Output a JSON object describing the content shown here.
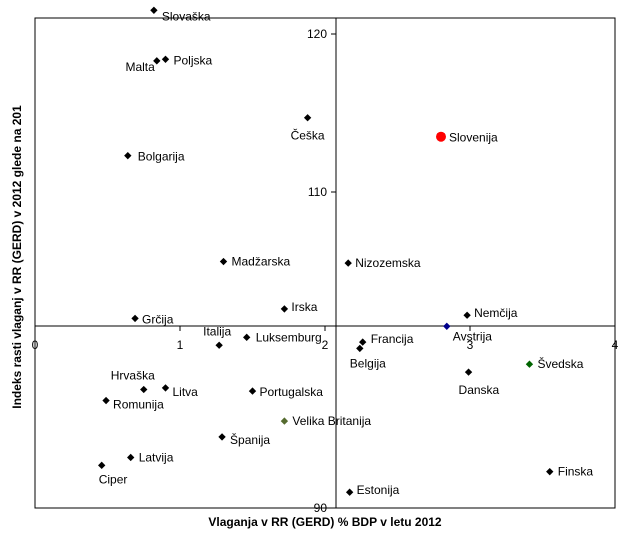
{
  "chart_data": {
    "type": "scatter",
    "title": "",
    "xlabel": "Vlaganja v RR (GERD) % BDP v letu 2012",
    "ylabel": "Indeks rasti vlaganj v RR (GERD) v 2012 glede na 201",
    "xlim": [
      0,
      4
    ],
    "ylim": [
      90,
      122
    ],
    "x_ticks": [
      0,
      1,
      2,
      3,
      4
    ],
    "y_ticks": [
      90,
      110,
      120
    ],
    "grid": false,
    "legend": "none",
    "highlight_color": "#ff0000",
    "default_color": "#000000",
    "points": [
      {
        "label": "Slovaška",
        "x": 0.82,
        "y": 121.5
      },
      {
        "label": "Malta",
        "x": 0.84,
        "y": 118.3
      },
      {
        "label": "Poljska",
        "x": 0.9,
        "y": 118.4
      },
      {
        "label": "Češka",
        "x": 1.88,
        "y": 114.7
      },
      {
        "label": "Slovenija",
        "x": 2.8,
        "y": 113.5,
        "color": "#ff0000"
      },
      {
        "label": "Bolgarija",
        "x": 0.64,
        "y": 112.3
      },
      {
        "label": "Madžarska",
        "x": 1.3,
        "y": 105.6
      },
      {
        "label": "Nizozemska",
        "x": 2.16,
        "y": 105.5
      },
      {
        "label": "Irska",
        "x": 1.72,
        "y": 102.6
      },
      {
        "label": "Nemčija",
        "x": 2.98,
        "y": 102.2
      },
      {
        "label": "Grčija",
        "x": 0.69,
        "y": 102.0
      },
      {
        "label": "Avstrija",
        "x": 2.84,
        "y": 101.5,
        "color": "#00008b"
      },
      {
        "label": "Luksemburg",
        "x": 1.46,
        "y": 100.8
      },
      {
        "label": "Francija",
        "x": 2.26,
        "y": 100.5
      },
      {
        "label": "Italija",
        "x": 1.27,
        "y": 100.3
      },
      {
        "label": "Belgija",
        "x": 2.24,
        "y": 100.1
      },
      {
        "label": "Švedska",
        "x": 3.41,
        "y": 99.1,
        "color": "#006400"
      },
      {
        "label": "Danska",
        "x": 2.99,
        "y": 98.6
      },
      {
        "label": "Hrvaška",
        "x": 0.75,
        "y": 97.5
      },
      {
        "label": "Litva",
        "x": 0.9,
        "y": 97.6
      },
      {
        "label": "Portugalska",
        "x": 1.5,
        "y": 97.4
      },
      {
        "label": "Romunija",
        "x": 0.49,
        "y": 96.8
      },
      {
        "label": "Velika Britanija",
        "x": 1.72,
        "y": 95.5,
        "color": "#556b2f"
      },
      {
        "label": "Španija",
        "x": 1.29,
        "y": 94.5
      },
      {
        "label": "Latvija",
        "x": 0.66,
        "y": 93.2
      },
      {
        "label": "Ciper",
        "x": 0.46,
        "y": 92.7
      },
      {
        "label": "Finska",
        "x": 3.55,
        "y": 92.3
      },
      {
        "label": "Estonija",
        "x": 2.17,
        "y": 91.0
      }
    ]
  }
}
